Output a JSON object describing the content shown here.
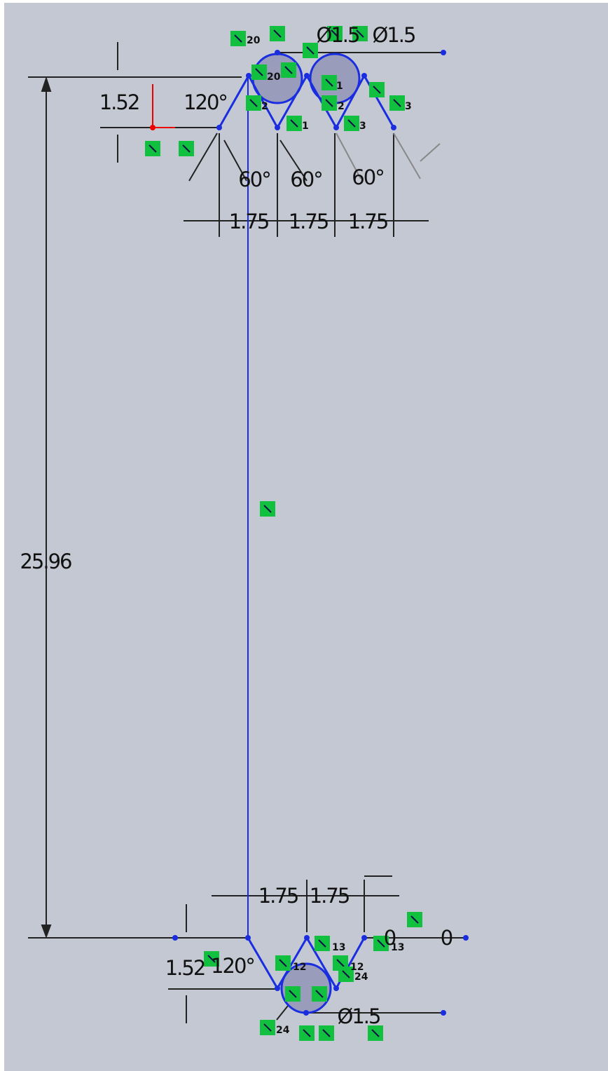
{
  "sketch": {
    "dimensions": [
      "1.52",
      "120°",
      "60°",
      "60°",
      "60°",
      "1.75",
      "1.75",
      "1.75",
      "Ø1.5",
      "Ø1.5",
      "25.96",
      "1.75",
      "1.75",
      "1.52",
      "120°",
      "Ø1.5",
      "0",
      "0"
    ],
    "relation_labels": [
      "20",
      "20",
      "1",
      "2",
      "2",
      "1",
      "3",
      "3",
      "13",
      "13",
      "12",
      "12",
      "24",
      "24"
    ]
  }
}
